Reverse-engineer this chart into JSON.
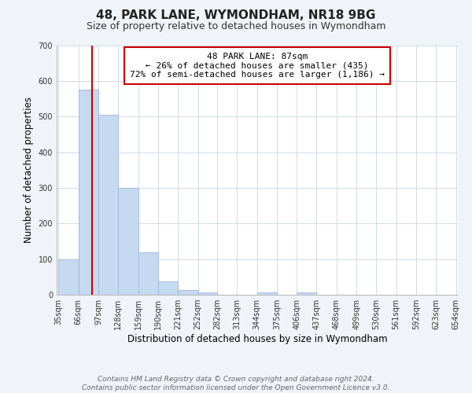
{
  "title": "48, PARK LANE, WYMONDHAM, NR18 9BG",
  "subtitle": "Size of property relative to detached houses in Wymondham",
  "xlabel": "Distribution of detached houses by size in Wymondham",
  "ylabel": "Number of detached properties",
  "bar_edges": [
    35,
    66,
    97,
    128,
    159,
    190,
    221,
    252,
    282,
    313,
    344,
    375,
    406,
    437,
    468,
    499,
    530,
    561,
    592,
    623,
    654
  ],
  "bar_heights": [
    100,
    575,
    505,
    300,
    118,
    37,
    14,
    7,
    0,
    0,
    7,
    0,
    7,
    0,
    0,
    0,
    0,
    0,
    0,
    0
  ],
  "bar_color": "#c5d9f1",
  "bar_edge_color": "#a0b8d8",
  "property_line_x": 87,
  "property_line_color": "#cc0000",
  "ylim": [
    0,
    700
  ],
  "yticks": [
    0,
    100,
    200,
    300,
    400,
    500,
    600,
    700
  ],
  "grid_color": "#d0dce8",
  "annotation_text": "48 PARK LANE: 87sqm\n← 26% of detached houses are smaller (435)\n72% of semi-detached houses are larger (1,186) →",
  "annotation_box_edgecolor": "#cc0000",
  "annotation_box_facecolor": "#ffffff",
  "footer_text": "Contains HM Land Registry data © Crown copyright and database right 2024.\nContains public sector information licensed under the Open Government Licence v3.0.",
  "background_color": "#f0f4f8",
  "plot_background_color": "#ffffff",
  "tick_labels": [
    "35sqm",
    "66sqm",
    "97sqm",
    "128sqm",
    "159sqm",
    "190sqm",
    "221sqm",
    "252sqm",
    "282sqm",
    "313sqm",
    "344sqm",
    "375sqm",
    "406sqm",
    "437sqm",
    "468sqm",
    "499sqm",
    "530sqm",
    "561sqm",
    "592sqm",
    "623sqm",
    "654sqm"
  ],
  "title_fontsize": 11,
  "subtitle_fontsize": 9,
  "ylabel_fontsize": 8.5,
  "xlabel_fontsize": 8.5,
  "tick_fontsize": 7,
  "annotation_fontsize": 8,
  "footer_fontsize": 6.5
}
